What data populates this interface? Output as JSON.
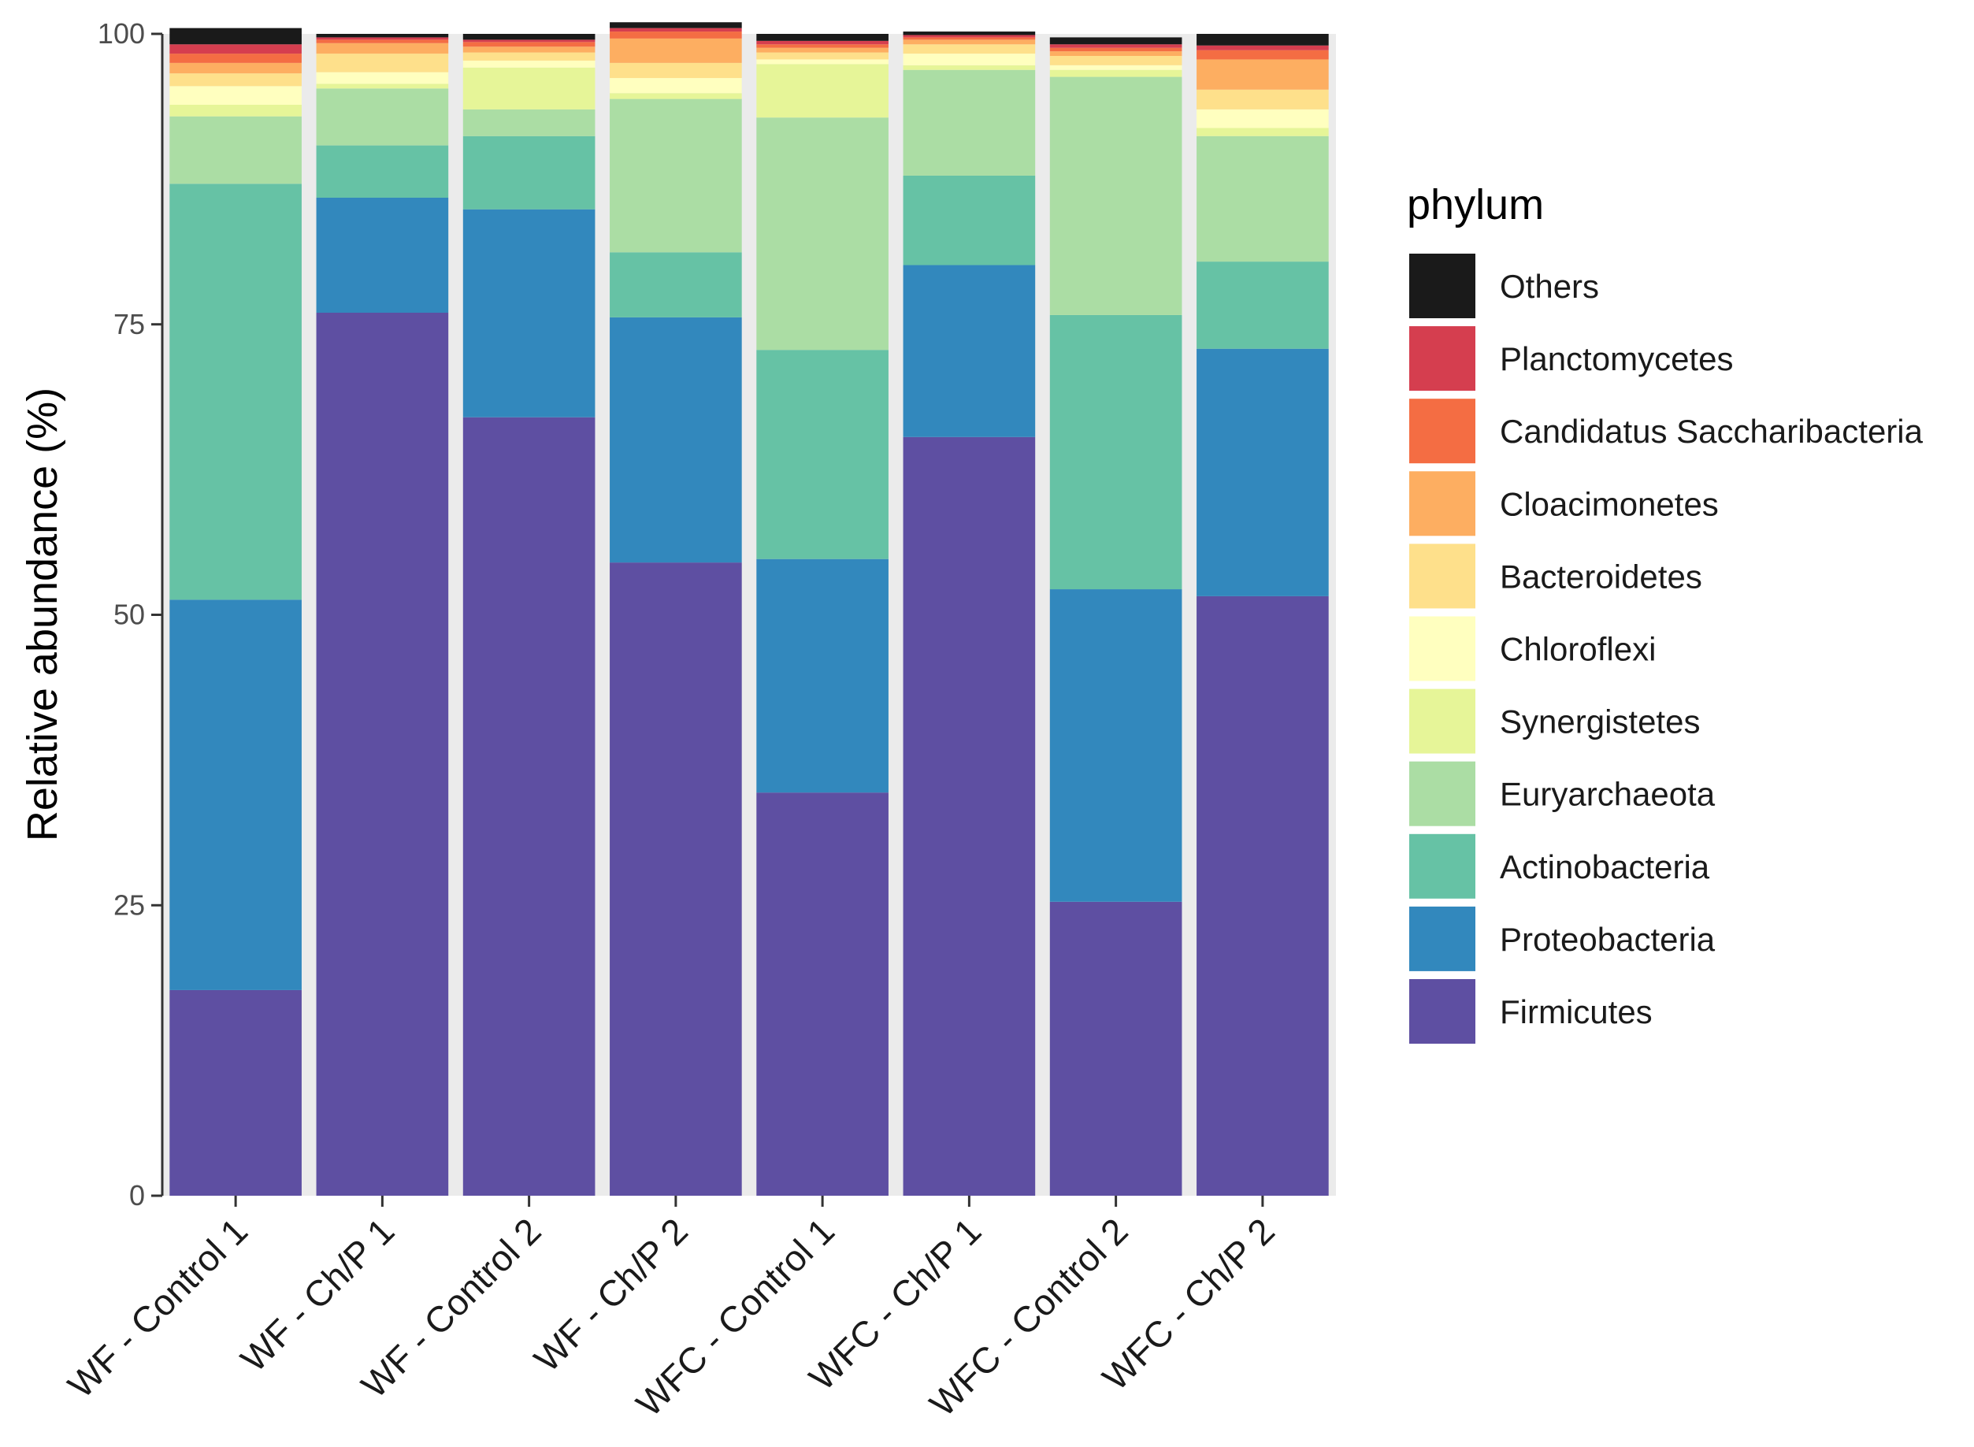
{
  "chart_data": {
    "type": "bar",
    "stacked": true,
    "title": "",
    "xlabel": "",
    "ylabel": "Relative abundance (%)",
    "ylim": [
      0,
      100
    ],
    "yticks": [
      "0",
      "25",
      "50",
      "75",
      "100"
    ],
    "ytick_values": [
      0,
      25,
      50,
      75,
      100
    ],
    "categories": [
      "WF - Control 1",
      "WF - Ch/P 1",
      "WF - Control 2",
      "WF - Ch/P 2",
      "WFC - Control 1",
      "WFC - Ch/P 1",
      "WFC - Control 2",
      "WFC - Ch/P 2"
    ],
    "legend_title": "phylum",
    "legend_position": "right",
    "series": [
      {
        "name": "Firmicutes",
        "color": "#5E4FA2",
        "values": [
          17.7,
          76.0,
          67.0,
          54.5,
          34.7,
          65.3,
          25.3,
          51.6
        ]
      },
      {
        "name": "Proteobacteria",
        "color": "#3288BD",
        "values": [
          33.6,
          9.9,
          17.9,
          21.1,
          20.1,
          14.8,
          26.9,
          21.3
        ]
      },
      {
        "name": "Actinobacteria",
        "color": "#66C2A5",
        "values": [
          35.8,
          4.5,
          6.3,
          5.6,
          18.0,
          7.7,
          23.6,
          7.5
        ]
      },
      {
        "name": "Euryarchaeota",
        "color": "#ABDDA4",
        "values": [
          5.8,
          4.9,
          2.3,
          13.2,
          20.0,
          9.1,
          20.5,
          10.8
        ]
      },
      {
        "name": "Synergistetes",
        "color": "#E6F598",
        "values": [
          1.0,
          0.4,
          3.6,
          0.5,
          4.6,
          0.4,
          0.6,
          0.7
        ]
      },
      {
        "name": "Chloroflexi",
        "color": "#FFFFBF",
        "values": [
          1.6,
          1.0,
          0.6,
          1.3,
          0.4,
          1.0,
          0.4,
          1.6
        ]
      },
      {
        "name": "Bacteroidetes",
        "color": "#FEE08B",
        "values": [
          1.1,
          1.6,
          0.7,
          1.3,
          0.6,
          0.8,
          0.8,
          1.7
        ]
      },
      {
        "name": "Cloacimonetes",
        "color": "#FDAE61",
        "values": [
          0.9,
          0.9,
          0.5,
          2.1,
          0.4,
          0.4,
          0.4,
          2.6
        ]
      },
      {
        "name": "Candidatus Saccharibacteria",
        "color": "#F46D43",
        "values": [
          0.8,
          0.3,
          0.4,
          0.6,
          0.3,
          0.2,
          0.3,
          0.8
        ]
      },
      {
        "name": "Planctomycetes",
        "color": "#D53E4F",
        "values": [
          0.8,
          0.2,
          0.2,
          0.3,
          0.3,
          0.2,
          0.3,
          0.4
        ]
      },
      {
        "name": "Others",
        "color": "#1A1A1A",
        "values": [
          1.4,
          0.3,
          0.5,
          0.5,
          0.6,
          0.3,
          0.6,
          1.0
        ]
      }
    ]
  }
}
